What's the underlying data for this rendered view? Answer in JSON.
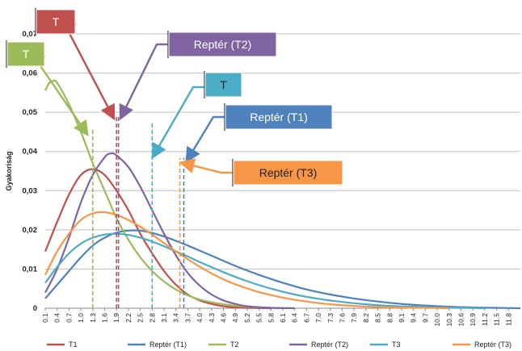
{
  "chart_data": {
    "type": "line",
    "title": "",
    "ylabel": "Gyakoriság",
    "xlabel": "",
    "ylim": [
      0,
      0.07
    ],
    "yticks": [
      "0",
      "0,01",
      "0,02",
      "0,03",
      "0,04",
      "0,05",
      "0,06",
      "0,07"
    ],
    "xticks": [
      "0.1",
      "0.4",
      "0.7",
      "1.0",
      "1.3",
      "1.6",
      "1.9",
      "2.2",
      "2.5",
      "2.8",
      "3.1",
      "3.4",
      "3.7",
      "4.0",
      "4.3",
      "4.6",
      "4.9",
      "5.2",
      "5.5",
      "5.8",
      "6.1",
      "6.4",
      "6.7",
      "7.0",
      "7.3",
      "7.6",
      "7.9",
      "8.2",
      "8.5",
      "8.8",
      "9.1",
      "9.4",
      "9.7",
      "10.0",
      "10.3",
      "10.6",
      "10.9",
      "11.2",
      "11.5",
      "11.8"
    ],
    "xlim": [
      0.1,
      12.1
    ],
    "grid": "horizontal",
    "legend_position": "bottom",
    "series": [
      {
        "name": "T1",
        "color": "#c0504d",
        "points": [
          [
            0.1,
            0.0145
          ],
          [
            0.4,
            0.022
          ],
          [
            0.7,
            0.029
          ],
          [
            1.0,
            0.034
          ],
          [
            1.3,
            0.0355
          ],
          [
            1.6,
            0.034
          ],
          [
            1.9,
            0.03
          ],
          [
            2.2,
            0.025
          ],
          [
            2.5,
            0.019
          ],
          [
            2.8,
            0.014
          ],
          [
            3.1,
            0.0095
          ],
          [
            3.4,
            0.006
          ],
          [
            3.7,
            0.0035
          ],
          [
            4.0,
            0.002
          ],
          [
            4.3,
            0.0011
          ],
          [
            4.6,
            0.0005
          ],
          [
            4.9,
            0.0002
          ],
          [
            5.2,
            0.0001
          ],
          [
            5.8,
            0.0
          ]
        ]
      },
      {
        "name": "Reptér (T1)",
        "color": "#4f81bd",
        "points": [
          [
            0.1,
            0.0025
          ],
          [
            0.4,
            0.006
          ],
          [
            0.7,
            0.0095
          ],
          [
            1.0,
            0.013
          ],
          [
            1.3,
            0.016
          ],
          [
            1.6,
            0.018
          ],
          [
            1.9,
            0.0193
          ],
          [
            2.2,
            0.0198
          ],
          [
            2.5,
            0.0198
          ],
          [
            2.8,
            0.0192
          ],
          [
            3.1,
            0.0183
          ],
          [
            3.4,
            0.0172
          ],
          [
            3.7,
            0.016
          ],
          [
            4.0,
            0.0147
          ],
          [
            4.3,
            0.0134
          ],
          [
            4.6,
            0.0121
          ],
          [
            4.9,
            0.0108
          ],
          [
            5.5,
            0.0085
          ],
          [
            6.1,
            0.0065
          ],
          [
            6.7,
            0.0048
          ],
          [
            7.3,
            0.0035
          ],
          [
            7.9,
            0.0025
          ],
          [
            8.5,
            0.0017
          ],
          [
            9.1,
            0.0011
          ],
          [
            9.7,
            0.0007
          ],
          [
            10.3,
            0.0004
          ],
          [
            10.9,
            0.0002
          ],
          [
            11.5,
            0.0001
          ],
          [
            12.1,
            0.0
          ]
        ]
      },
      {
        "name": "T2",
        "color": "#9bbb59",
        "points": [
          [
            0.1,
            0.0555
          ],
          [
            0.2,
            0.0575
          ],
          [
            0.3,
            0.058
          ],
          [
            0.4,
            0.0575
          ],
          [
            0.7,
            0.052
          ],
          [
            1.0,
            0.045
          ],
          [
            1.3,
            0.037
          ],
          [
            1.6,
            0.03
          ],
          [
            1.9,
            0.023
          ],
          [
            2.2,
            0.0175
          ],
          [
            2.5,
            0.013
          ],
          [
            2.8,
            0.0095
          ],
          [
            3.1,
            0.0068
          ],
          [
            3.4,
            0.0048
          ],
          [
            3.7,
            0.0033
          ],
          [
            4.0,
            0.0022
          ],
          [
            4.6,
            0.001
          ],
          [
            5.2,
            0.0004
          ],
          [
            5.8,
            0.0001
          ],
          [
            6.4,
            0.0
          ]
        ]
      },
      {
        "name": "Reptér (T2)",
        "color": "#8064a2",
        "points": [
          [
            0.1,
            0.004
          ],
          [
            0.4,
            0.01
          ],
          [
            0.7,
            0.018
          ],
          [
            1.0,
            0.027
          ],
          [
            1.3,
            0.034
          ],
          [
            1.6,
            0.0385
          ],
          [
            1.75,
            0.0395
          ],
          [
            1.9,
            0.039
          ],
          [
            2.2,
            0.036
          ],
          [
            2.5,
            0.031
          ],
          [
            2.8,
            0.025
          ],
          [
            3.1,
            0.019
          ],
          [
            3.4,
            0.0135
          ],
          [
            3.7,
            0.009
          ],
          [
            4.0,
            0.0058
          ],
          [
            4.3,
            0.0035
          ],
          [
            4.6,
            0.002
          ],
          [
            4.9,
            0.0011
          ],
          [
            5.2,
            0.0005
          ],
          [
            5.8,
            0.0001
          ],
          [
            6.4,
            0.0
          ]
        ]
      },
      {
        "name": "T3",
        "color": "#4bacc6",
        "points": [
          [
            0.1,
            0.0065
          ],
          [
            0.4,
            0.0105
          ],
          [
            0.7,
            0.014
          ],
          [
            1.0,
            0.0165
          ],
          [
            1.3,
            0.018
          ],
          [
            1.6,
            0.0188
          ],
          [
            1.9,
            0.019
          ],
          [
            2.2,
            0.0187
          ],
          [
            2.5,
            0.018
          ],
          [
            2.8,
            0.017
          ],
          [
            3.1,
            0.0158
          ],
          [
            3.4,
            0.0145
          ],
          [
            3.7,
            0.0132
          ],
          [
            4.0,
            0.0118
          ],
          [
            4.6,
            0.0092
          ],
          [
            5.2,
            0.0069
          ],
          [
            5.8,
            0.005
          ],
          [
            6.4,
            0.0035
          ],
          [
            7.0,
            0.0024
          ],
          [
            7.6,
            0.0016
          ],
          [
            8.2,
            0.001
          ],
          [
            8.8,
            0.0006
          ],
          [
            9.4,
            0.0004
          ],
          [
            10.0,
            0.0002
          ],
          [
            10.6,
            0.0001
          ],
          [
            11.2,
            0.0
          ]
        ]
      },
      {
        "name": "Reptér (T3)",
        "color": "#f79646",
        "points": [
          [
            0.1,
            0.0085
          ],
          [
            0.4,
            0.0145
          ],
          [
            0.7,
            0.019
          ],
          [
            1.0,
            0.0225
          ],
          [
            1.3,
            0.0242
          ],
          [
            1.6,
            0.0245
          ],
          [
            1.9,
            0.0238
          ],
          [
            2.2,
            0.0225
          ],
          [
            2.5,
            0.0208
          ],
          [
            2.8,
            0.0188
          ],
          [
            3.1,
            0.0166
          ],
          [
            3.4,
            0.0145
          ],
          [
            3.7,
            0.0125
          ],
          [
            4.0,
            0.0106
          ],
          [
            4.3,
            0.0089
          ],
          [
            4.6,
            0.0074
          ],
          [
            4.9,
            0.0061
          ],
          [
            5.5,
            0.0041
          ],
          [
            6.1,
            0.0027
          ],
          [
            6.7,
            0.0017
          ],
          [
            7.3,
            0.001
          ],
          [
            7.9,
            0.0006
          ],
          [
            8.5,
            0.0003
          ],
          [
            9.1,
            0.0002
          ],
          [
            9.7,
            0.0001
          ],
          [
            10.3,
            0.0
          ]
        ]
      }
    ],
    "markers": [
      {
        "label": "T",
        "x": 1.3,
        "color": "#9bbb59",
        "box": "#9bbb59"
      },
      {
        "label": "T",
        "x": 1.9,
        "color": "#c0504d",
        "box": "#c0504d"
      },
      {
        "label": "Reptér (T2)",
        "x": 1.95,
        "color": "#8064a2",
        "box": "#8064a2"
      },
      {
        "label": "T",
        "x": 2.8,
        "color": "#4bacc6",
        "box": "#4bacc6"
      },
      {
        "label": "Reptér (T1)",
        "x": 3.6,
        "color": "#4f81bd",
        "box": "#4f81bd"
      },
      {
        "label": "Reptér (T3)",
        "x": 3.5,
        "color": "#f79646",
        "box": "#f79646"
      }
    ]
  }
}
